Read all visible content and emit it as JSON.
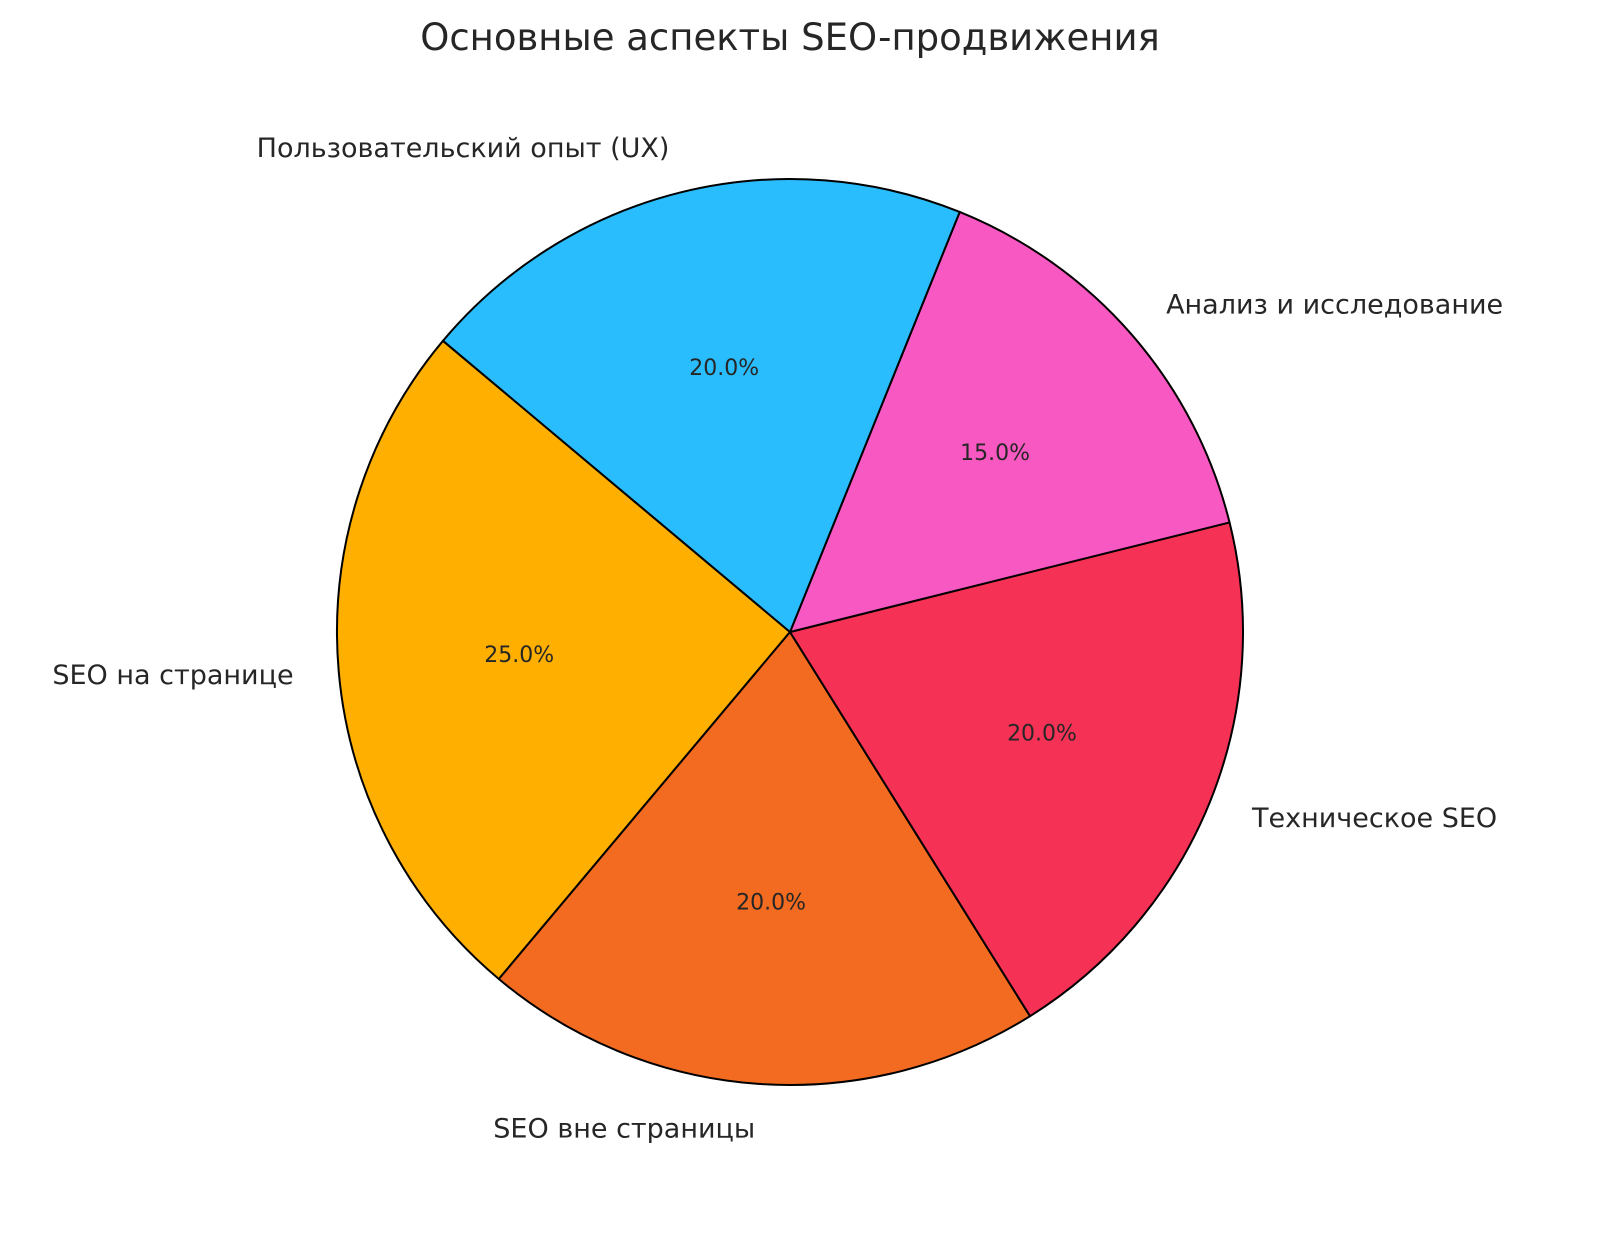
{
  "chart_data": {
    "type": "pie",
    "title": "Основные аспекты SEO-продвижения",
    "start_angle_deg": 140,
    "direction": "counterclockwise",
    "slices": [
      {
        "label": "SEO на странице",
        "value": 25.0,
        "pct_label": "25.0%",
        "color": "#FFAF00"
      },
      {
        "label": "SEO вне страницы",
        "value": 20.0,
        "pct_label": "20.0%",
        "color": "#F26B21"
      },
      {
        "label": "Техническое SEO",
        "value": 20.0,
        "pct_label": "20.0%",
        "color": "#F53255"
      },
      {
        "label": "Анализ и исследование",
        "value": 15.0,
        "pct_label": "15.0%",
        "color": "#F858C1"
      },
      {
        "label": "Пользовательский опыт (UX)",
        "value": 20.0,
        "pct_label": "20.0%",
        "color": "#29BDFD"
      }
    ],
    "edge_color": "#000000"
  }
}
